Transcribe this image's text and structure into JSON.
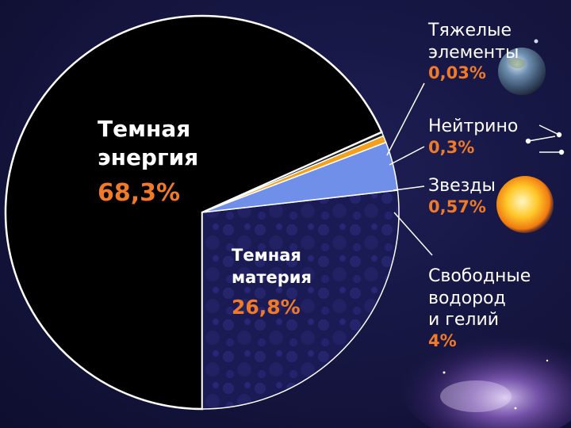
{
  "chart_data": {
    "type": "pie",
    "title": "",
    "slices": [
      {
        "label": "Темная энергия",
        "display": "68,3%",
        "value": 68.3,
        "color": "#000000"
      },
      {
        "label": "Темная материя",
        "display": "26,8%",
        "value": 26.8,
        "color": "#1a1a55"
      },
      {
        "label": "Свободные водород и гелий",
        "display": "4%",
        "value": 4.0,
        "color": "#6f8fe8"
      },
      {
        "label": "Звезды",
        "display": "0,57%",
        "value": 0.57,
        "color": "#f3a11c"
      },
      {
        "label": "Нейтрино",
        "display": "0,3%",
        "value": 0.3,
        "color": "#1c1c1c"
      },
      {
        "label": "Тяжелые элементы",
        "display": "0,03%",
        "value": 0.03,
        "color": "#1d6b3c"
      }
    ]
  },
  "labels": {
    "dark_energy": {
      "line1": "Темная",
      "line2": "энергия",
      "value": "68,3%"
    },
    "dark_matter": {
      "line1": "Темная",
      "line2": "материя",
      "value": "26,8%"
    },
    "heavy_elements": {
      "line1": "Тяжелые",
      "line2": "элементы",
      "value": "0,03%"
    },
    "neutrino": {
      "line1": "Нейтрино",
      "value": "0,3%"
    },
    "stars": {
      "line1": "Звезды",
      "value": "0,57%"
    },
    "free_gas": {
      "line1": "Свободные",
      "line2": "водород",
      "line3": "и гелий",
      "value": "4%"
    }
  },
  "icons": [
    "earth-icon",
    "neutrino-icon",
    "sun-icon",
    "nebula-icon"
  ]
}
